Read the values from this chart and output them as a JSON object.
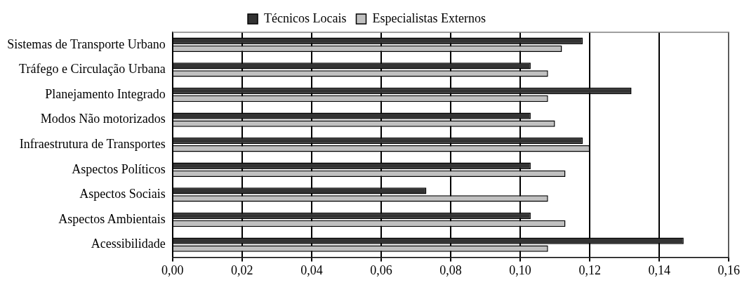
{
  "chart_data": {
    "type": "bar",
    "orientation": "horizontal",
    "categories": [
      "Sistemas de Transporte Urbano",
      "Tráfego e Circulação Urbana",
      "Planejamento Integrado",
      "Modos Não motorizados",
      "Infraestrutura de Transportes",
      "Aspectos Políticos",
      "Aspectos Sociais",
      "Aspectos Ambientais",
      "Acessibilidade"
    ],
    "series": [
      {
        "name": "Técnicos Locais",
        "color": "#333333",
        "values": [
          0.118,
          0.103,
          0.132,
          0.103,
          0.118,
          0.103,
          0.073,
          0.103,
          0.147
        ]
      },
      {
        "name": "Especialistas Externos",
        "color": "#c0c0c0",
        "values": [
          0.112,
          0.108,
          0.108,
          0.11,
          0.12,
          0.113,
          0.108,
          0.113,
          0.108
        ]
      }
    ],
    "xlim": [
      0,
      0.16
    ],
    "xticks": [
      {
        "value": 0,
        "label": "0,00"
      },
      {
        "value": 0.02,
        "label": "0,02"
      },
      {
        "value": 0.04,
        "label": "0,04"
      },
      {
        "value": 0.06,
        "label": "0,06"
      },
      {
        "value": 0.08,
        "label": "0,08"
      },
      {
        "value": 0.1,
        "label": "0,10"
      },
      {
        "value": 0.12,
        "label": "0,12"
      },
      {
        "value": 0.14,
        "label": "0,14"
      },
      {
        "value": 0.16,
        "label": "0,16"
      }
    ],
    "grid": "x",
    "legend": "top"
  }
}
